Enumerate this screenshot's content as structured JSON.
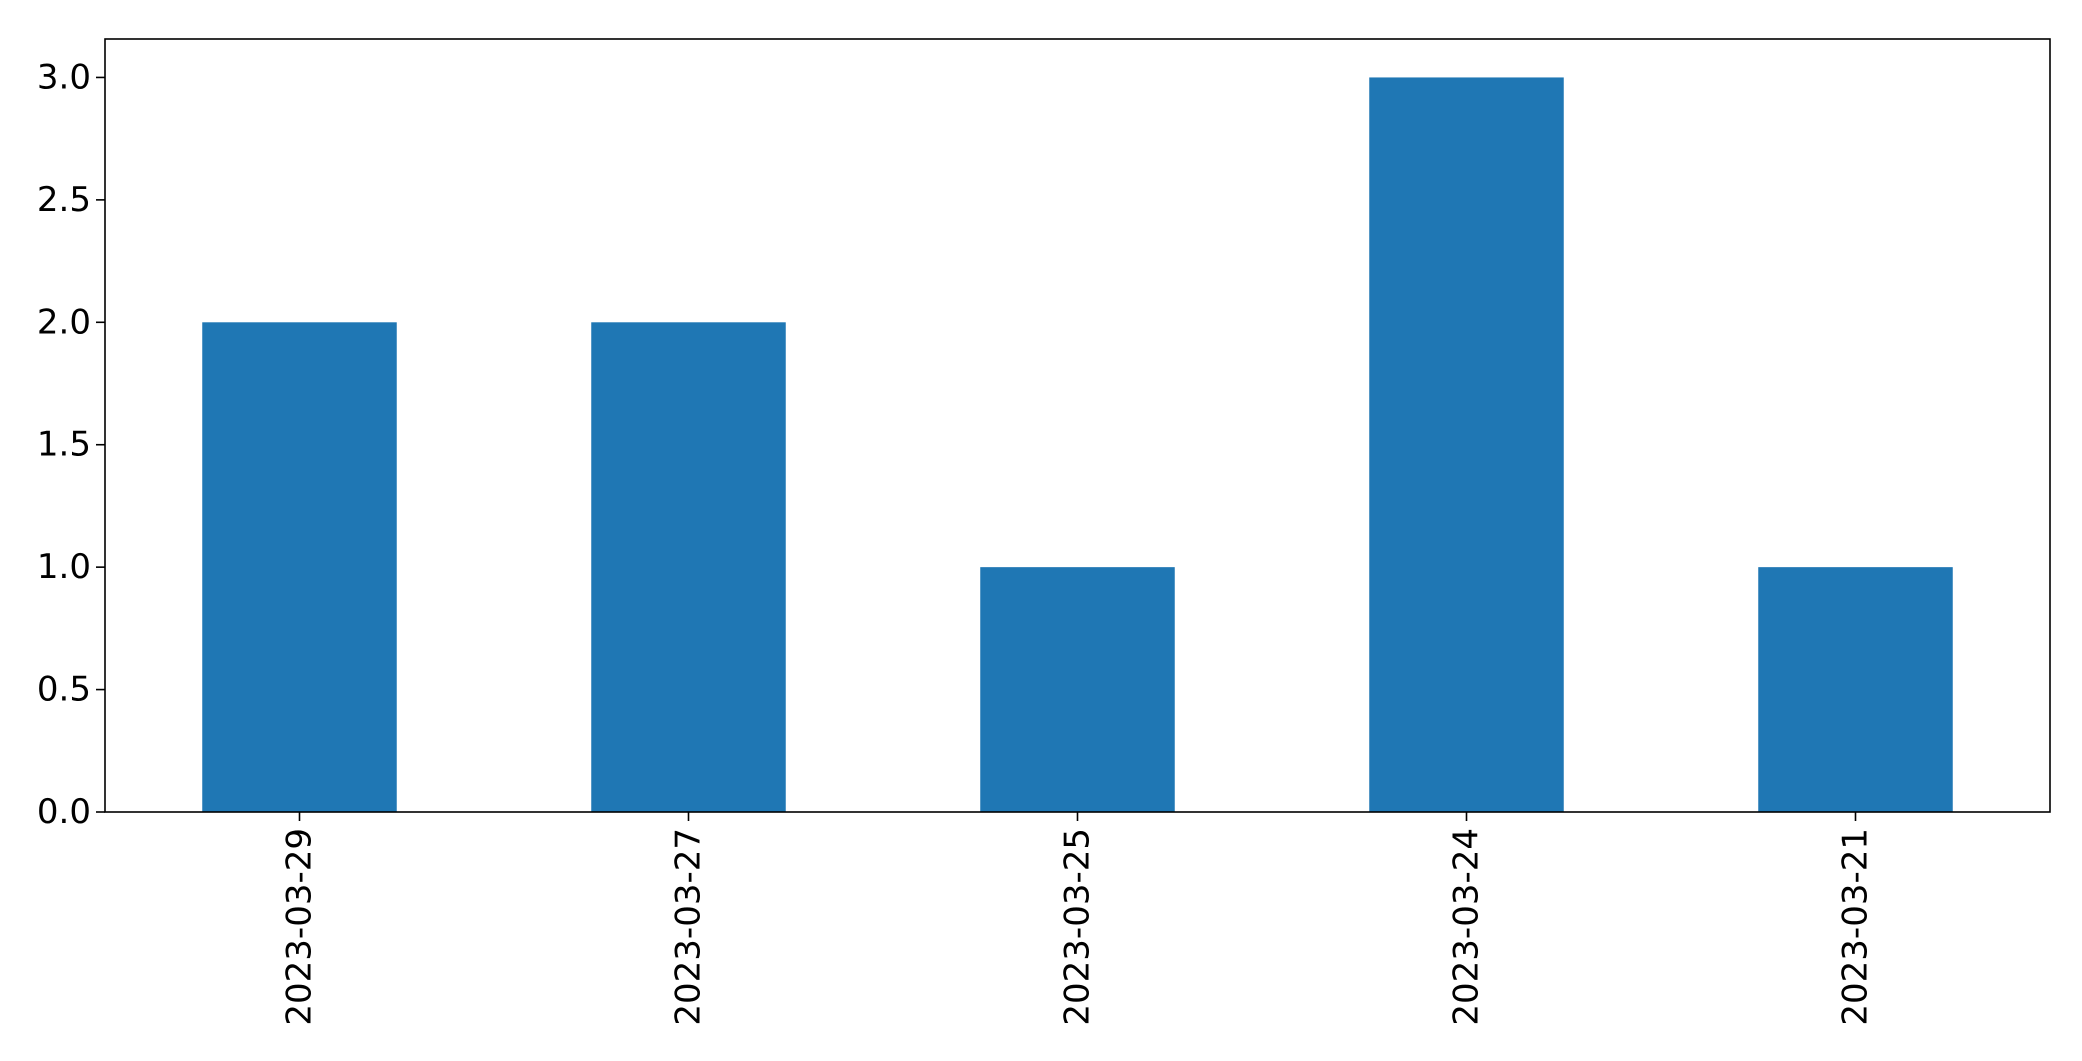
{
  "chart_data": {
    "type": "bar",
    "categories": [
      "2023-03-29",
      "2023-03-27",
      "2023-03-25",
      "2023-03-24",
      "2023-03-21"
    ],
    "values": [
      2,
      2,
      1,
      3,
      1
    ],
    "title": "",
    "xlabel": "",
    "ylabel": "",
    "ylim": [
      0,
      3.157
    ],
    "yticks": [
      0.0,
      0.5,
      1.0,
      1.5,
      2.0,
      2.5,
      3.0
    ],
    "ytick_labels": [
      "0.0",
      "0.5",
      "1.0",
      "1.5",
      "2.0",
      "2.5",
      "3.0"
    ],
    "x_tick_rotation": "vertical",
    "grid": false,
    "legend": "none",
    "bar_color": "#1f77b4"
  }
}
